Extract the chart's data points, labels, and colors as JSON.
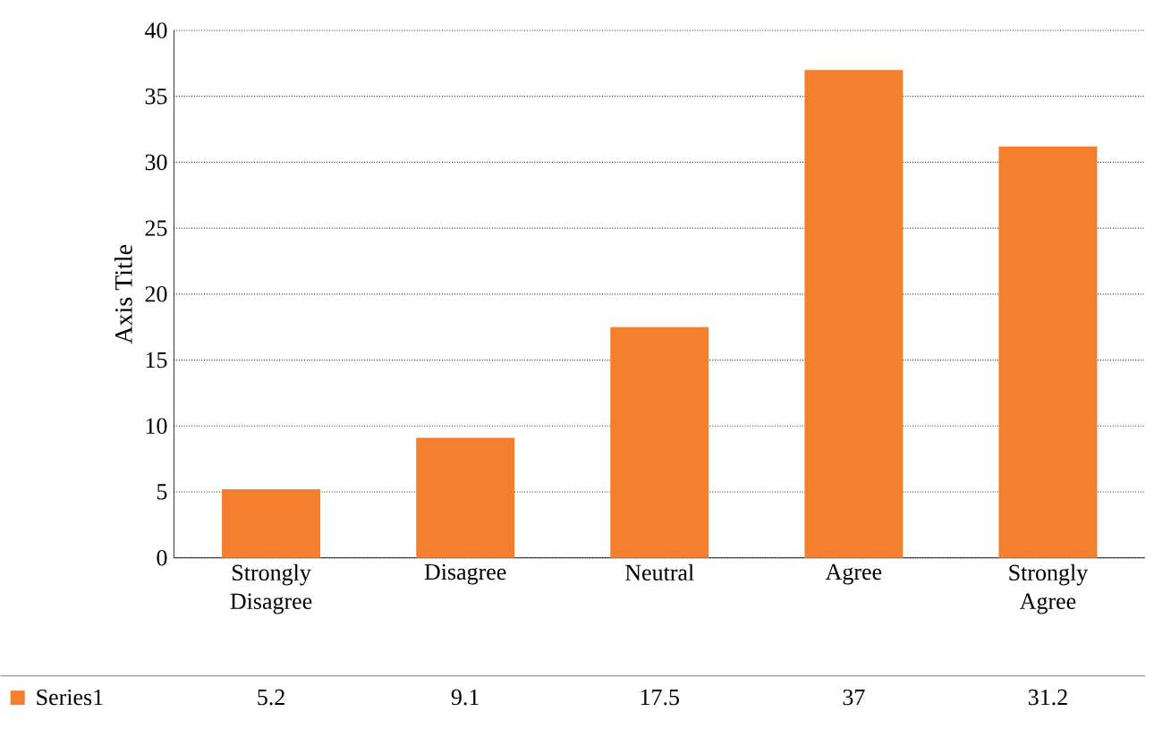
{
  "chart_data": {
    "type": "bar",
    "ylabel": "Axis Title",
    "categories": [
      "Strongly Disagree",
      "Disagree",
      "Neutral",
      "Agree",
      "Strongly Agree"
    ],
    "series": [
      {
        "name": "Series1",
        "color": "#f47f2f",
        "values": [
          5.2,
          9.1,
          17.5,
          37,
          31.2
        ]
      }
    ],
    "ylim": [
      0,
      40
    ],
    "yticks": [
      0,
      5,
      10,
      15,
      20,
      25,
      30,
      35,
      40
    ],
    "grid": "y",
    "legend": "bottom",
    "data_labels": true
  }
}
